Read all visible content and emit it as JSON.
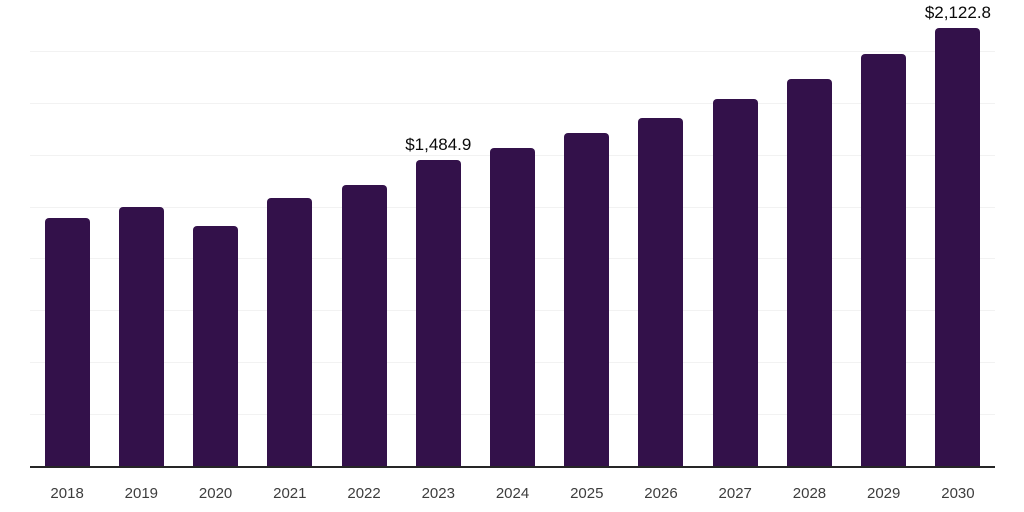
{
  "chart_data": {
    "type": "bar",
    "title": "",
    "xlabel": "",
    "ylabel": "",
    "categories": [
      "2018",
      "2019",
      "2020",
      "2021",
      "2022",
      "2023",
      "2024",
      "2025",
      "2026",
      "2027",
      "2028",
      "2029",
      "2030"
    ],
    "values": [
      1205,
      1260,
      1165,
      1300,
      1365,
      1484.9,
      1545,
      1615,
      1690,
      1780,
      1880,
      2000,
      2122.8
    ],
    "data_labels": [
      "",
      "",
      "",
      "",
      "",
      "$1,484.9",
      "",
      "",
      "",
      "",
      "",
      "",
      "$2,122.8"
    ],
    "ylim": [
      0,
      2260
    ],
    "grid": "horizontal-only",
    "gridline_count": 9,
    "legend": "none",
    "y_axis_tick_labels": "none",
    "colors": {
      "bar": "#33114a",
      "axis_line": "#262626",
      "gridline": "#f2f2f2",
      "tick_label": "#3d3d3d",
      "value_label": "#0a0a0a",
      "background": "#ffffff"
    }
  }
}
